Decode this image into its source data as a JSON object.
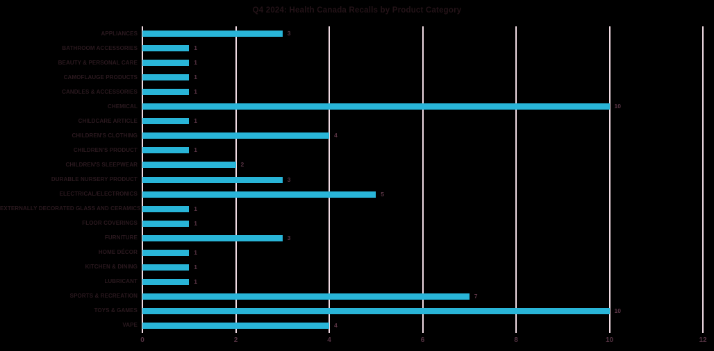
{
  "chart_data": {
    "type": "bar",
    "orientation": "horizontal",
    "title": "Q4 2024: Health Canada Recalls by Product Category",
    "categories": [
      "APPLIANCES",
      "BATHROOM ACCESSORIES",
      "BEAUTY & PERSONAL CARE",
      "CAMOFLAUGE PRODUCTS",
      "CANDLES & ACCESSORIES",
      "CHEMICAL",
      "CHILDCARE ARTICLE",
      "CHILDREN'S CLOTHING",
      "CHILDREN'S PRODUCT",
      "CHILDREN'S SLEEPWEAR",
      "DURABLE NURSERY PRODUCT",
      "ELECTRICAL/ELECTRONICS",
      "EXTERNALLY DECORATED GLASS AND CERAMICS",
      "FLOOR COVERINGS",
      "FURNITURE",
      "HOME DÉCOR",
      "KITCHEN & DINING",
      "LUBRICANT",
      "SPORTS & RECREATION",
      "TOYS & GAMES",
      "VAPE"
    ],
    "values": [
      3,
      1,
      1,
      1,
      1,
      10,
      1,
      4,
      1,
      2,
      3,
      5,
      1,
      1,
      3,
      1,
      1,
      1,
      7,
      10,
      4
    ],
    "data_labels": [
      "3",
      "1",
      "1",
      "1",
      "1",
      "10",
      "1",
      "4",
      "1",
      "2",
      "3",
      "5",
      "1",
      "1",
      "3",
      "1",
      "1",
      "1",
      "7",
      "10",
      "4"
    ],
    "xlabel": "",
    "ylabel": "",
    "xlim": [
      0,
      12
    ],
    "xticks": [
      "0",
      "2",
      "4",
      "6",
      "8",
      "10",
      "12"
    ],
    "xtick_values": [
      0,
      2,
      4,
      6,
      8,
      10,
      12
    ],
    "grid": "vertical",
    "legend": "none",
    "colors": {
      "background": "#000000",
      "bar": "#29b5d8",
      "gridline": "#f0dbe3",
      "title_text": "#241318",
      "category_text": "#2b191f",
      "value_text": "#5a3545",
      "tick_text": "#553343"
    }
  }
}
